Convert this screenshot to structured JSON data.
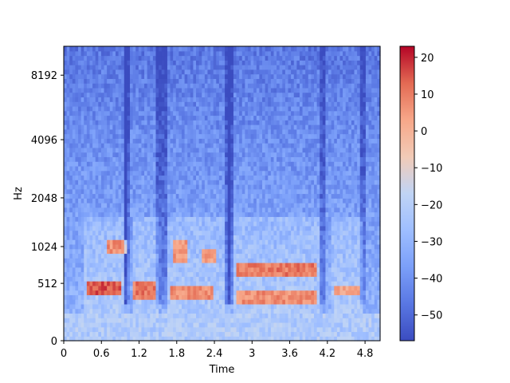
{
  "chart_data": {
    "type": "heatmap",
    "title": "",
    "xlabel": "Time",
    "ylabel": "Hz",
    "xlim": [
      0,
      5.04
    ],
    "y_scale": "log-like (mel)",
    "x_ticks": [
      {
        "value": 0,
        "label": "0"
      },
      {
        "value": 0.6,
        "label": "0.6"
      },
      {
        "value": 1.2,
        "label": "1.2"
      },
      {
        "value": 1.8,
        "label": "1.8"
      },
      {
        "value": 2.4,
        "label": "2.4"
      },
      {
        "value": 3.0,
        "label": "3"
      },
      {
        "value": 3.6,
        "label": "3.6"
      },
      {
        "value": 4.2,
        "label": "4.2"
      },
      {
        "value": 4.8,
        "label": "4.8"
      }
    ],
    "y_ticks": [
      {
        "value": 0,
        "label": "0"
      },
      {
        "value": 512,
        "label": "512"
      },
      {
        "value": 1024,
        "label": "1024"
      },
      {
        "value": 2048,
        "label": "2048"
      },
      {
        "value": 4096,
        "label": "4096"
      },
      {
        "value": 8192,
        "label": "8192"
      }
    ],
    "colorbar": {
      "colormap": "coolwarm",
      "range": [
        -57,
        23
      ],
      "ticks": [
        {
          "value": 20,
          "label": "20"
        },
        {
          "value": 10,
          "label": "10"
        },
        {
          "value": 0,
          "label": "0"
        },
        {
          "value": -10,
          "label": "−10"
        },
        {
          "value": -20,
          "label": "−20"
        },
        {
          "value": -30,
          "label": "−30"
        },
        {
          "value": -40,
          "label": "−40"
        },
        {
          "value": -50,
          "label": "−50"
        }
      ]
    },
    "hot_regions": [
      {
        "t": [
          0.35,
          0.9
        ],
        "f_mel": [
          0.16,
          0.2
        ],
        "level_db": 20
      },
      {
        "t": [
          1.1,
          1.45
        ],
        "f_mel": [
          0.14,
          0.2
        ],
        "level_db": 15
      },
      {
        "t": [
          1.7,
          2.4
        ],
        "f_mel": [
          0.14,
          0.19
        ],
        "level_db": 12
      },
      {
        "t": [
          2.75,
          4.05
        ],
        "f_mel": [
          0.22,
          0.27
        ],
        "level_db": 15
      },
      {
        "t": [
          2.75,
          4.05
        ],
        "f_mel": [
          0.13,
          0.17
        ],
        "level_db": 12
      },
      {
        "t": [
          0.7,
          1.0
        ],
        "f_mel": [
          0.29,
          0.35
        ],
        "level_db": 12
      },
      {
        "t": [
          1.75,
          1.95
        ],
        "f_mel": [
          0.27,
          0.35
        ],
        "level_db": 10
      },
      {
        "t": [
          2.2,
          2.45
        ],
        "f_mel": [
          0.27,
          0.31
        ],
        "level_db": 10
      },
      {
        "t": [
          4.3,
          4.7
        ],
        "f_mel": [
          0.16,
          0.19
        ],
        "level_db": 8
      }
    ],
    "background_level_db": -35
  }
}
